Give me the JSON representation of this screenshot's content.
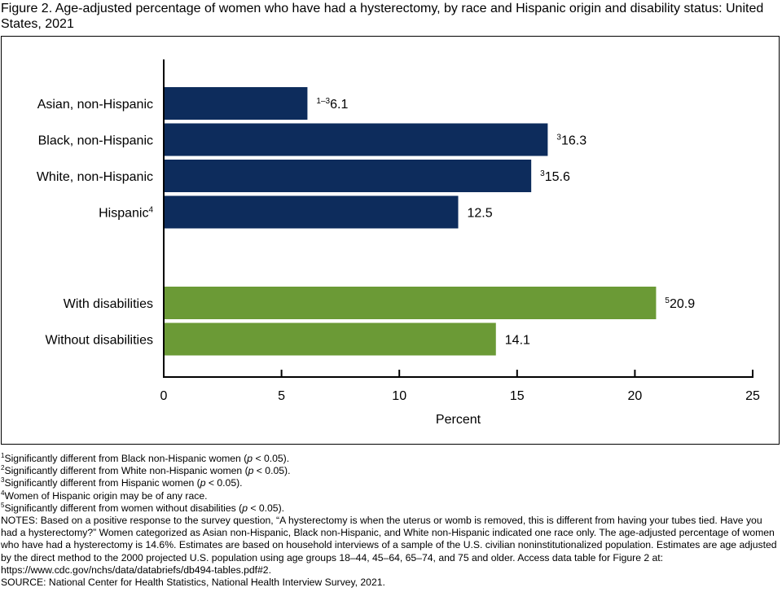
{
  "title": "Figure 2. Age-adjusted percentage of women who have had a hysterectomy, by race and Hispanic origin and disability status: United States, 2021",
  "chart_data": {
    "type": "bar",
    "orientation": "horizontal",
    "xlabel": "Percent",
    "xlim": [
      0,
      25
    ],
    "xticks": [
      0,
      5,
      10,
      15,
      20,
      25
    ],
    "grid": false,
    "legend": "none",
    "groups": [
      {
        "color": "#0d2c5c",
        "bars": [
          {
            "label": "Asian, non-Hispanic",
            "label_sup": "",
            "value": 6.1,
            "value_label": "6.1",
            "value_sup": "1–3"
          },
          {
            "label": "Black, non-Hispanic",
            "label_sup": "",
            "value": 16.3,
            "value_label": "16.3",
            "value_sup": "3"
          },
          {
            "label": "White, non-Hispanic",
            "label_sup": "",
            "value": 15.6,
            "value_label": "15.6",
            "value_sup": "3"
          },
          {
            "label": "Hispanic",
            "label_sup": "4",
            "value": 12.5,
            "value_label": "12.5",
            "value_sup": ""
          }
        ]
      },
      {
        "color": "#6b9a36",
        "bars": [
          {
            "label": "With disabilities",
            "label_sup": "",
            "value": 20.9,
            "value_label": "20.9",
            "value_sup": "5"
          },
          {
            "label": "Without disabilities",
            "label_sup": "",
            "value": 14.1,
            "value_label": "14.1",
            "value_sup": ""
          }
        ]
      }
    ]
  },
  "footnotes": [
    {
      "sup": "1",
      "parts": [
        "Significantly different from Black non-Hispanic women (",
        "p",
        " < 0.05)."
      ]
    },
    {
      "sup": "2",
      "parts": [
        "Significantly different from White non-Hispanic women (",
        "p",
        " < 0.05)."
      ]
    },
    {
      "sup": "3",
      "parts": [
        "Significantly different from Hispanic women (",
        "p",
        " < 0.05)."
      ]
    },
    {
      "sup": "4",
      "parts": [
        "Women of Hispanic origin may be of any race."
      ]
    },
    {
      "sup": "5",
      "parts": [
        "Significantly different from women without disabilities (",
        "p",
        " < 0.05)."
      ]
    }
  ],
  "notes": "NOTES: Based on a positive response to the survey question, “A hysterectomy is when the uterus or womb is removed, this is different from having your tubes tied. Have you had a hysterectomy?” Women categorized as Asian non-Hispanic, Black non-Hispanic, and White non-Hispanic indicated one race only. The age-adjusted percentage of women who have had a hysterectomy is 14.6%. Estimates are based on household interviews of a sample of the U.S. civilian noninstitutionalized population. Estimates are age adjusted by the direct method to the 2000 projected U.S. population using age groups 18–44, 45–64, 65–74, and 75 and older. Access data table for Figure 2 at: https://www.cdc.gov/nchs/data/databriefs/db494-tables.pdf#2.",
  "source": "SOURCE: National Center for Health Statistics, National Health Interview Survey, 2021."
}
